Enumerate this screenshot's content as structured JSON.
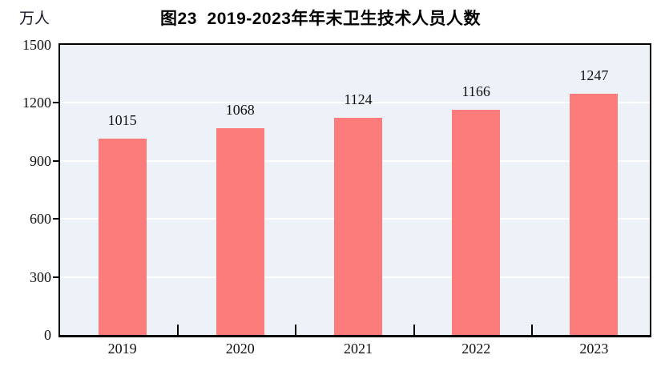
{
  "chart_data": {
    "type": "bar",
    "title": "图23  2019-2023年年末卫生技术人员人数",
    "unit_label": "万人",
    "categories": [
      "2019",
      "2020",
      "2021",
      "2022",
      "2023"
    ],
    "values": [
      1015,
      1068,
      1124,
      1166,
      1247
    ],
    "data_labels": [
      "1015",
      "1068",
      "1124",
      "1166",
      "1247"
    ],
    "ylim": [
      0,
      1500
    ],
    "yticks": [
      0,
      300,
      600,
      900,
      1200,
      1500
    ],
    "grid": "horizontal",
    "legend": "none",
    "colors": {
      "bar": "#fc7b7b",
      "plot_background": "#ecf2f7",
      "gridline": "#ffffff",
      "frame": "#000000",
      "text": "#1a1a1a"
    }
  }
}
